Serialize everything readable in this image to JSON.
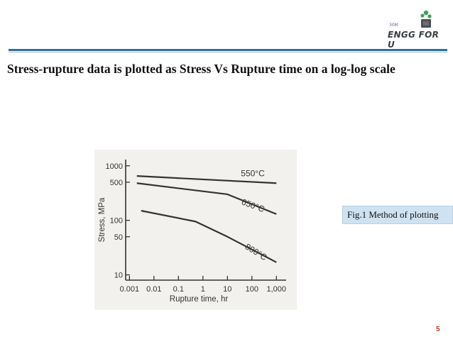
{
  "logo": {
    "top_text": "30M",
    "brand": "ENGG FOR U",
    "accent": "#3aa35a"
  },
  "slide": {
    "title": "Stress-rupture data is plotted as  Stress Vs  Rupture time on a log-log scale",
    "caption": "Fig.1 Method of plotting",
    "page_number": "5"
  },
  "colors": {
    "rule": "#2f6f9b",
    "caption_bg": "#cfe2f1",
    "page_number": "#c0392b"
  },
  "chart_data": {
    "type": "line",
    "xscale": "log",
    "yscale": "log",
    "xlabel": "Rupture time, hr",
    "ylabel": "Stress, MPa",
    "xticks": [
      0.001,
      0.01,
      0.1,
      1,
      10,
      100,
      1000
    ],
    "xtick_labels": [
      "0.001",
      "0.01",
      "0.1",
      "1",
      "10",
      "100",
      "1,000"
    ],
    "yticks": [
      1000,
      500,
      100,
      50,
      10
    ],
    "ytick_labels": [
      "1000",
      "500",
      "100",
      "50",
      "10"
    ],
    "xlim": [
      0.0007,
      2500
    ],
    "ylim": [
      8,
      1300
    ],
    "grid": false,
    "series": [
      {
        "name": "550°C",
        "x": [
          0.002,
          1000
        ],
        "y": [
          650,
          480
        ]
      },
      {
        "name": "650°C",
        "x": [
          0.002,
          10,
          1000
        ],
        "y": [
          480,
          300,
          130
        ]
      },
      {
        "name": "800°C",
        "x": [
          0.003,
          0.5,
          10,
          1000
        ],
        "y": [
          150,
          95,
          50,
          17
        ]
      }
    ]
  }
}
